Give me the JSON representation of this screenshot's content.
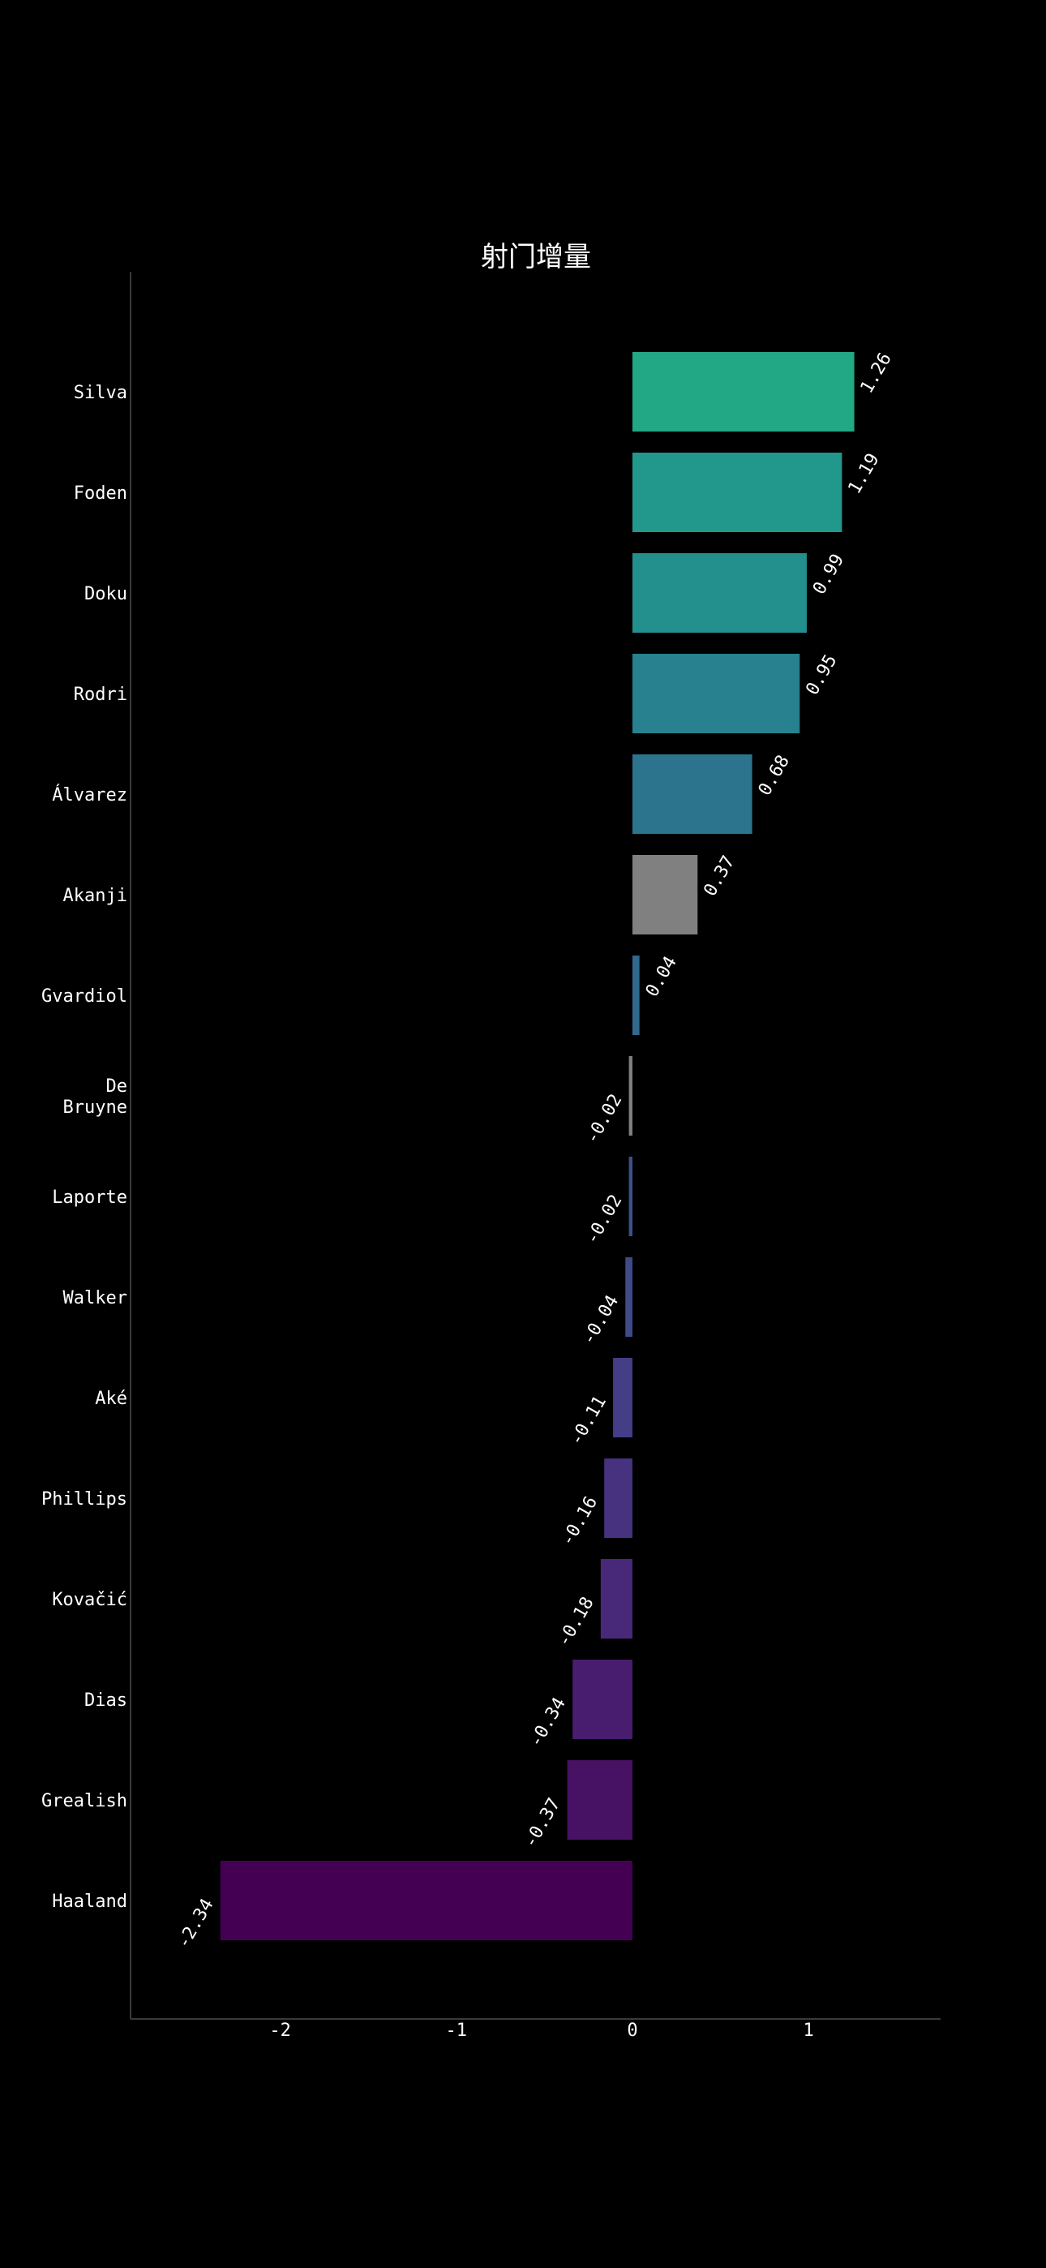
{
  "chart_data": {
    "type": "bar",
    "orientation": "horizontal",
    "title": "射门增量",
    "xlabel": "",
    "ylabel": "",
    "xlim": [
      -2.85,
      1.75
    ],
    "xticks": [
      -2,
      -1,
      0,
      1
    ],
    "xtick_labels": [
      "-2",
      "-1",
      "0",
      "1"
    ],
    "grid": false,
    "categories": [
      [
        "Silva"
      ],
      [
        "Foden"
      ],
      [
        "Doku"
      ],
      [
        "Rodri"
      ],
      [
        "Álvarez"
      ],
      [
        "Akanji"
      ],
      [
        "Gvardiol"
      ],
      [
        "De",
        "Bruyne"
      ],
      [
        "Laporte"
      ],
      [
        "Walker"
      ],
      [
        "Aké"
      ],
      [
        "Phillips"
      ],
      [
        "Kovačić"
      ],
      [
        "Dias"
      ],
      [
        "Grealish"
      ],
      [
        "Haaland"
      ]
    ],
    "values": [
      1.26,
      1.19,
      0.99,
      0.95,
      0.68,
      0.37,
      0.04,
      -0.02,
      -0.02,
      -0.04,
      -0.11,
      -0.16,
      -0.18,
      -0.34,
      -0.37,
      -2.34
    ],
    "value_labels": [
      "1.26",
      "1.19",
      "0.99",
      "0.95",
      "0.68",
      "0.37",
      "0.04",
      "-0.02",
      "-0.02",
      "-0.04",
      "-0.11",
      "-0.16",
      "-0.18",
      "-0.34",
      "-0.37",
      "-2.34"
    ],
    "colors": [
      "#22a884",
      "#21988b",
      "#23908d",
      "#27818e",
      "#2c738e",
      "#808080",
      "#31688e",
      "#808080",
      "#3b528b",
      "#3f4a8a",
      "#433e85",
      "#46327e",
      "#482979",
      "#481d6f",
      "#471164",
      "#440154"
    ]
  }
}
